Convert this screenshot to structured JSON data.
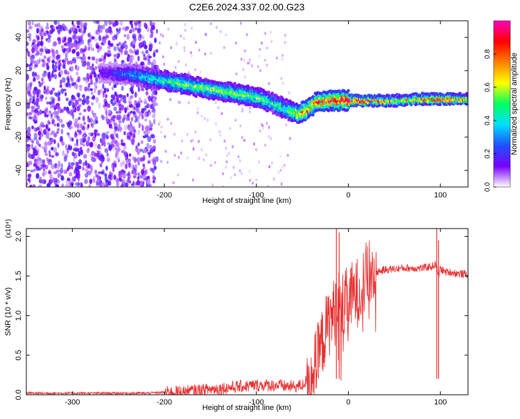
{
  "title": "C2E6.2024.337.02.00.G23",
  "chart_data": [
    {
      "type": "heatmap",
      "xlabel": "Height of straight line (km)",
      "ylabel": "Frequency (Hz)",
      "xlim": [
        -350,
        130
      ],
      "ylim": [
        -50,
        50
      ],
      "x_ticks": [
        -300,
        -200,
        -100,
        0,
        100
      ],
      "y_ticks": [
        -40,
        -20,
        0,
        20,
        40
      ],
      "x_tick_labels": [
        "-300",
        "-200",
        "-100",
        "0",
        "100"
      ],
      "y_tick_labels": [
        "-40",
        "-20",
        "0",
        "20",
        "40"
      ],
      "colorbar": {
        "label": "Normalized spectral amplitude",
        "range": [
          0.0,
          1.0
        ],
        "ticks": [
          0.0,
          0.2,
          0.4,
          0.6,
          0.8
        ],
        "tick_labels": [
          "0.0",
          "0.2",
          "0.4",
          "0.6",
          "0.8"
        ],
        "colors": [
          "#ffffff",
          "#7a00ff",
          "#2050ff",
          "#00e0ff",
          "#00ff60",
          "#ffff00",
          "#ff8000",
          "#ff0000",
          "#ff00c0"
        ]
      },
      "ridge": {
        "x": [
          -270,
          -240,
          -210,
          -180,
          -150,
          -120,
          -100,
          -80,
          -65,
          -55,
          -45,
          -35,
          -20,
          0,
          20,
          50,
          80,
          100,
          130
        ],
        "y": [
          19,
          18,
          15,
          12,
          9,
          6,
          4,
          0,
          -4,
          -6,
          -4,
          1,
          2,
          2,
          2,
          2,
          3,
          3,
          3
        ],
        "amplitude": [
          0.15,
          0.3,
          0.45,
          0.55,
          0.55,
          0.55,
          0.55,
          0.5,
          0.5,
          0.7,
          0.8,
          0.85,
          0.9,
          0.95,
          0.9,
          0.7,
          0.75,
          0.95,
          0.7
        ]
      }
    },
    {
      "type": "line",
      "xlabel": "Height of straight line (km)",
      "ylabel": "SNR (10 * v/v)",
      "y_multiplier": "(x10⁴)",
      "xlim": [
        -350,
        130
      ],
      "ylim": [
        0,
        2.1
      ],
      "x_ticks": [
        -300,
        -200,
        -100,
        0,
        100
      ],
      "y_ticks": [
        0.0,
        0.5,
        1.0,
        1.5,
        2.0
      ],
      "x_tick_labels": [
        "-300",
        "-200",
        "-100",
        "0",
        "100"
      ],
      "y_tick_labels": [
        "0.0",
        "0.5",
        "1.0",
        "1.5",
        "2.0"
      ],
      "line_color": "#e83030",
      "series": [
        {
          "x": [
            -350,
            -300,
            -250,
            -220,
            -200,
            -180,
            -160,
            -140,
            -120,
            -100,
            -80,
            -60,
            -50,
            -40,
            -35,
            -30,
            -25,
            -20,
            -15,
            -10,
            -5,
            0,
            5,
            10,
            15,
            20,
            30,
            40,
            60,
            80,
            90,
            95,
            98,
            100,
            105,
            110,
            120,
            130
          ],
          "y": [
            0.02,
            0.02,
            0.02,
            0.02,
            0.03,
            0.04,
            0.06,
            0.08,
            0.1,
            0.12,
            0.12,
            0.1,
            0.12,
            0.25,
            0.4,
            0.6,
            0.8,
            0.95,
            1.05,
            1.15,
            1.1,
            1.2,
            1.25,
            1.3,
            1.4,
            1.5,
            1.55,
            1.58,
            1.6,
            1.6,
            1.62,
            1.65,
            1.5,
            1.6,
            1.55,
            1.55,
            1.53,
            1.52
          ]
        }
      ],
      "peaks": {
        "x": [
          -13,
          -10,
          96,
          98
        ],
        "y": [
          2.1,
          2.05,
          2.1,
          1.95
        ]
      }
    }
  ]
}
